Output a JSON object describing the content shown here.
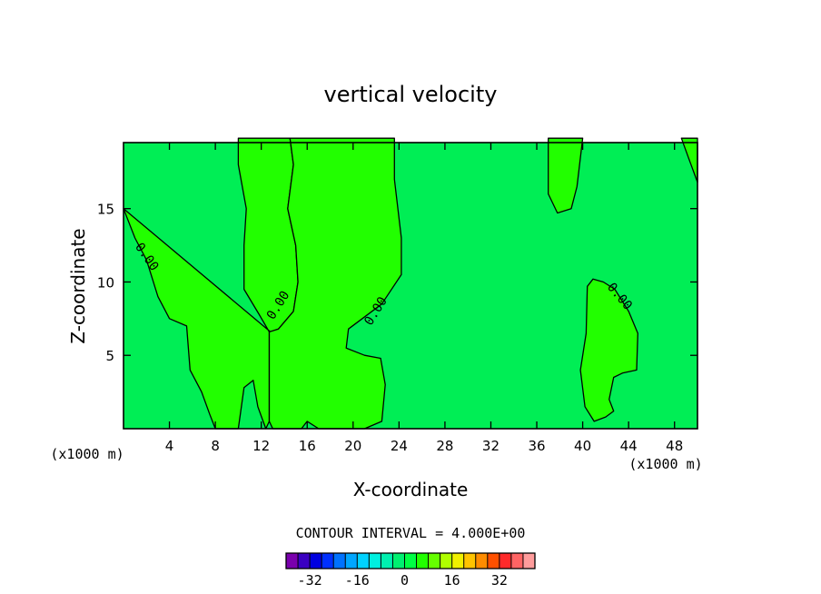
{
  "chart_data": {
    "type": "heatmap",
    "title": "vertical velocity",
    "xlabel": "X-coordinate",
    "ylabel": "Z-coordinate",
    "xunit_left": "(x1000 m)",
    "xunit_right": "(x1000 m)",
    "xlim": [
      0,
      50
    ],
    "ylim": [
      0,
      19.5
    ],
    "xticks": [
      4,
      8,
      12,
      16,
      20,
      24,
      28,
      32,
      36,
      40,
      44,
      48
    ],
    "yticks": [
      5,
      10,
      15
    ],
    "contour_label": "0.00",
    "regions": [
      {
        "level": "positive",
        "color": "#22ff00",
        "outline": [
          [
            0,
            15
          ],
          [
            1,
            13
          ],
          [
            2,
            11.5
          ],
          [
            3,
            9
          ],
          [
            4,
            7.5
          ],
          [
            5.5,
            7
          ],
          [
            5.8,
            4
          ],
          [
            6.8,
            2.5
          ],
          [
            7.5,
            1
          ],
          [
            8,
            0
          ],
          [
            10,
            0
          ],
          [
            10.5,
            2.8
          ],
          [
            11.3,
            3.3
          ],
          [
            11.7,
            1.5
          ],
          [
            12.4,
            0
          ],
          [
            12.7,
            0.5
          ],
          [
            12.7,
            6.6
          ],
          [
            11.8,
            7.8
          ],
          [
            10.5,
            9.5
          ],
          [
            10.5,
            12.5
          ],
          [
            10.7,
            15
          ],
          [
            10,
            18
          ],
          [
            10,
            19.8
          ],
          [
            14.5,
            19.8
          ],
          [
            14.8,
            18
          ],
          [
            14.3,
            15
          ],
          [
            15,
            12.5
          ],
          [
            15.2,
            10
          ],
          [
            14.8,
            8
          ],
          [
            13.5,
            6.8
          ],
          [
            12.8,
            6.6
          ]
        ]
      },
      {
        "level": "positive",
        "color": "#22ff00",
        "outline": [
          [
            14.5,
            19.8
          ],
          [
            23.6,
            19.8
          ],
          [
            23.6,
            17
          ],
          [
            24.2,
            13
          ],
          [
            24.2,
            10.5
          ],
          [
            22.5,
            8.5
          ],
          [
            20.8,
            7.5
          ],
          [
            19.6,
            6.8
          ],
          [
            19.4,
            5.5
          ],
          [
            21,
            5
          ],
          [
            22.4,
            4.8
          ],
          [
            22.8,
            3
          ],
          [
            22.5,
            0.5
          ],
          [
            21,
            0
          ],
          [
            17,
            0
          ],
          [
            16,
            0.5
          ],
          [
            15.5,
            0
          ],
          [
            13,
            0
          ],
          [
            12.7,
            0.5
          ],
          [
            12.7,
            6.6
          ],
          [
            13.5,
            6.8
          ],
          [
            14.8,
            8
          ],
          [
            15.2,
            10
          ],
          [
            15,
            12.5
          ],
          [
            14.3,
            15
          ],
          [
            14.8,
            18
          ]
        ]
      },
      {
        "level": "positive",
        "color": "#22ff00",
        "outline": [
          [
            37,
            19.8
          ],
          [
            37,
            16
          ],
          [
            37.8,
            14.7
          ],
          [
            39,
            15
          ],
          [
            39.5,
            16.5
          ],
          [
            40,
            19.8
          ]
        ]
      },
      {
        "level": "positive",
        "color": "#22ff00",
        "outline": [
          [
            40.4,
            9.7
          ],
          [
            40.9,
            10.2
          ],
          [
            41.8,
            10
          ],
          [
            42.8,
            9.5
          ],
          [
            44,
            8
          ],
          [
            44.8,
            6.5
          ],
          [
            44.7,
            4
          ],
          [
            43.5,
            3.8
          ],
          [
            42.7,
            3.5
          ],
          [
            42.3,
            2
          ],
          [
            42.7,
            1.2
          ],
          [
            42,
            0.8
          ],
          [
            41,
            0.5
          ],
          [
            40.2,
            1.5
          ],
          [
            39.8,
            4
          ],
          [
            40.3,
            6.5
          ]
        ]
      },
      {
        "level": "positive",
        "color": "#22ff00",
        "outline": [
          [
            48.6,
            19.8
          ],
          [
            49.2,
            18.5
          ],
          [
            50,
            16.8
          ],
          [
            50,
            19.8
          ]
        ]
      }
    ],
    "contour_annotations": [
      {
        "text": "0.00",
        "x": 2,
        "y": 11.7,
        "angle": 55
      },
      {
        "text": "0.00",
        "x": 13.5,
        "y": 8.4,
        "angle": -58
      },
      {
        "text": "0.00",
        "x": 22,
        "y": 8.0,
        "angle": -58
      },
      {
        "text": "0.00",
        "x": 43.2,
        "y": 9.0,
        "angle": 50
      }
    ],
    "colorbar": {
      "title": "CONTOUR INTERVAL = 4.000E+00",
      "levels": [
        -36,
        -32,
        -28,
        -24,
        -20,
        -16,
        -12,
        -8,
        -4,
        0,
        4,
        8,
        12,
        16,
        20,
        24,
        28,
        32,
        36
      ],
      "colors": [
        "#7a00ad",
        "#3a00c2",
        "#0000e0",
        "#0030ff",
        "#0072ff",
        "#00a6ff",
        "#00d2ff",
        "#00f0e0",
        "#00f0b0",
        "#00f070",
        "#00ff44",
        "#22ff00",
        "#66ff00",
        "#b0ff00",
        "#f0f000",
        "#ffc400",
        "#ff8c00",
        "#ff5000",
        "#ff2a2a",
        "#ff6464",
        "#ff9c9c"
      ],
      "tick_labels": [
        "-32",
        "-16",
        "0",
        "16",
        "32"
      ],
      "tick_values": [
        -32,
        -16,
        0,
        16,
        32
      ]
    },
    "colors": {
      "background_field": "#00ee55",
      "contour_line": "#000000"
    }
  }
}
